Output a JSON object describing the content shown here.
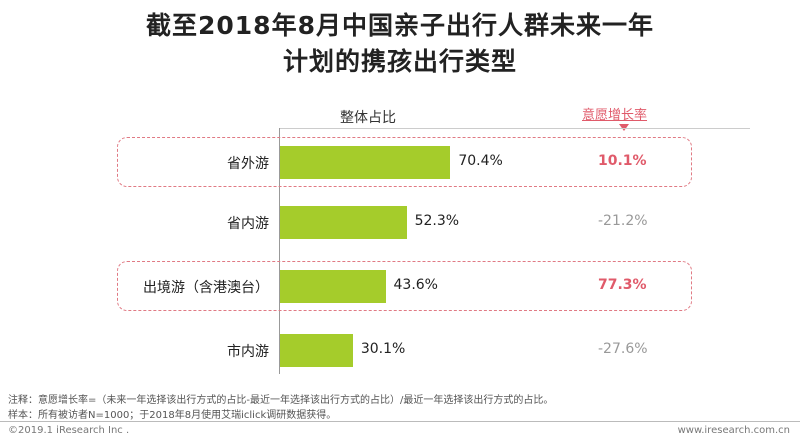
{
  "title_line1": "截至2018年8月中国亲子出行人群未来一年",
  "title_line2": "计划的携孩出行类型",
  "share_header": "整体占比",
  "growth_header": "意愿增长率",
  "colors": {
    "bar": "#a5cc2b",
    "highlight": "#e05a6a",
    "negative": "#999999"
  },
  "chart_data": {
    "type": "bar",
    "orientation": "horizontal",
    "categories": [
      "省外游",
      "省内游",
      "出境游（含港澳台）",
      "市内游"
    ],
    "values": [
      70.4,
      52.3,
      43.6,
      30.1
    ],
    "value_labels": [
      "70.4%",
      "52.3%",
      "43.6%",
      "30.1%"
    ],
    "growth_rate": [
      10.1,
      -21.2,
      77.3,
      -27.6
    ],
    "growth_labels": [
      "10.1%",
      "-21.2%",
      "77.3%",
      "-27.6%"
    ],
    "highlighted": [
      true,
      false,
      true,
      false
    ],
    "xlim": [
      0,
      100
    ]
  },
  "notes": {
    "line1": "注释：意愿增长率=（未来一年选择该出行方式的占比-最近一年选择该出行方式的占比）/最近一年选择该出行方式的占比。",
    "line2": "样本：所有被访者N=1000；于2018年8月使用艾瑞iclick调研数据获得。"
  },
  "footer": {
    "left": "©2019.1 iResearch Inc .",
    "right": "www.iresearch.com.cn"
  }
}
